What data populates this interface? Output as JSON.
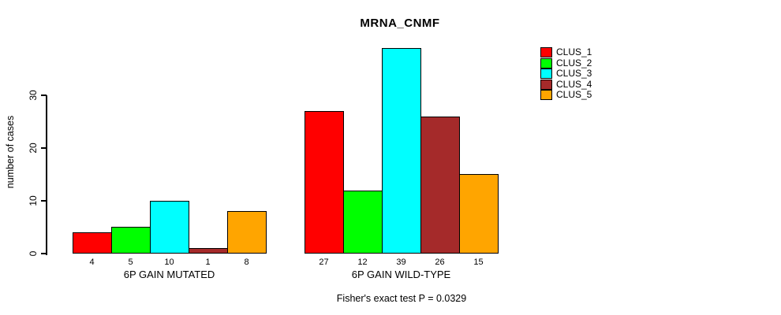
{
  "title": "MRNA_CNMF",
  "footer": "Fisher's exact test P = 0.0329",
  "legend": [
    {
      "label": "CLUS_1",
      "color": "#FF0000"
    },
    {
      "label": "CLUS_2",
      "color": "#00FF00"
    },
    {
      "label": "CLUS_3",
      "color": "#00FFFF"
    },
    {
      "label": "CLUS_4",
      "color": "#A52A2A"
    },
    {
      "label": "CLUS_5",
      "color": "#FFA500"
    }
  ],
  "chart_data": {
    "type": "bar",
    "title": "MRNA_CNMF",
    "xlabel": "",
    "ylabel": "number of cases",
    "ylim": [
      0,
      39
    ],
    "yticks": [
      0,
      10,
      20,
      30
    ],
    "grid": false,
    "legend_position": "right",
    "show_values_below_bars": true,
    "series_names": [
      "CLUS_1",
      "CLUS_2",
      "CLUS_3",
      "CLUS_4",
      "CLUS_5"
    ],
    "colors": [
      "#FF0000",
      "#00FF00",
      "#00FFFF",
      "#A52A2A",
      "#FFA500"
    ],
    "groups": [
      {
        "label": "6P GAIN MUTATED",
        "values": [
          4,
          5,
          10,
          1,
          8
        ]
      },
      {
        "label": "6P GAIN WILD-TYPE",
        "values": [
          27,
          12,
          39,
          26,
          15
        ]
      }
    ],
    "annotation": "Fisher's exact test P = 0.0329"
  }
}
